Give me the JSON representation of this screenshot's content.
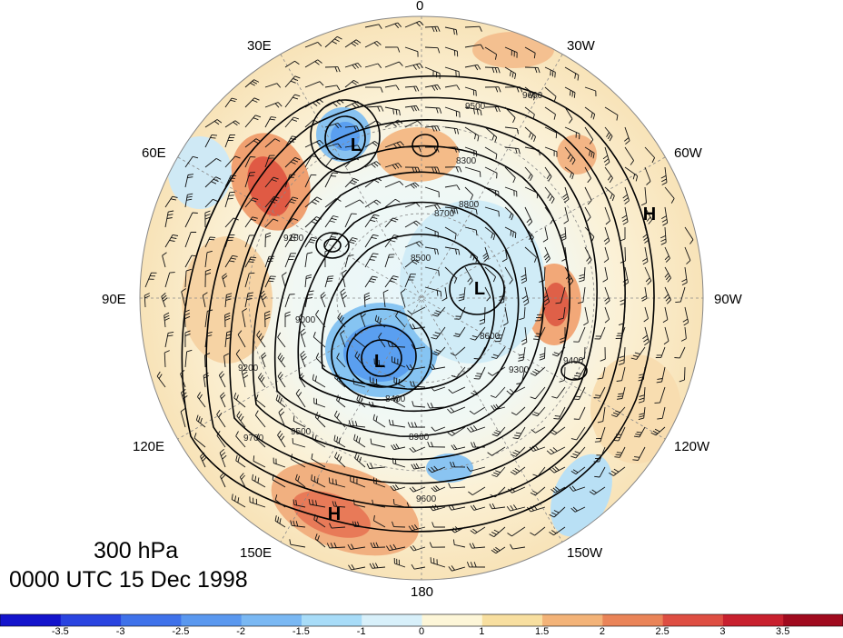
{
  "map": {
    "projection": "north-polar-stereographic",
    "level": "300 hPa",
    "valid_time": "0000 UTC 15 Dec 1998",
    "longitude_labels": [
      "0",
      "30W",
      "60W",
      "90W",
      "120W",
      "150W",
      "180",
      "150E",
      "120E",
      "90E",
      "60E",
      "30E"
    ],
    "pressure_centers": [
      {
        "type": "L",
        "lon": "40E",
        "lat_approx": 66
      },
      {
        "type": "L",
        "lon": "100W",
        "lat_approx": 80
      },
      {
        "type": "L",
        "lon": "150E",
        "lat_approx": 75
      },
      {
        "type": "H",
        "lon": "65W",
        "lat_approx": 40
      },
      {
        "type": "H",
        "lon": "150E",
        "lat_approx": 35
      }
    ],
    "contour_labels": [
      "9500",
      "9600",
      "9700",
      "9400",
      "9300",
      "9200",
      "9100",
      "9000",
      "8900",
      "8800",
      "8700",
      "8600",
      "8500",
      "8400",
      "8300"
    ],
    "contour_interval": "100",
    "anomaly_field": "shaded",
    "wind": "barbs"
  },
  "colorbar": {
    "tick_labels": [
      "-3.5",
      "-3",
      "-2.5",
      "-2",
      "-1.5",
      "-1",
      "0",
      "1",
      "1.5",
      "2",
      "2.5",
      "3",
      "3.5"
    ],
    "colors": [
      "#1414cc",
      "#2a44e0",
      "#3f72ea",
      "#5a98ef",
      "#7ab8f3",
      "#a8dcf8",
      "#d8f0fa",
      "#fdf6d8",
      "#f8dfa0",
      "#f3b378",
      "#ea8458",
      "#de4e42",
      "#c8202e",
      "#a00a1e"
    ]
  }
}
